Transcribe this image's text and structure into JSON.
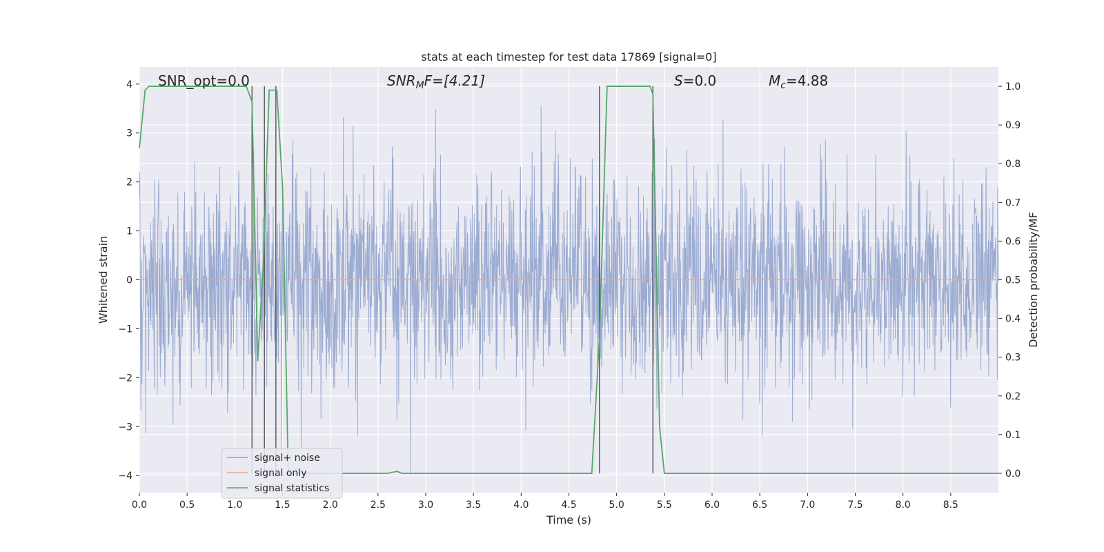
{
  "chart_data": {
    "type": "line",
    "title": "stats at each timestep for test data 17869 [signal=0]",
    "xlabel": "Time (s)",
    "ylabel": "Whitened strain",
    "ylabel_right": "Detection probability/MF",
    "xlim": [
      0.0,
      9.0
    ],
    "ylim": [
      -4.35,
      4.35
    ],
    "ylim_right": [
      -0.05,
      1.05
    ],
    "x_ticks": [
      "0.0",
      "0.5",
      "1.0",
      "1.5",
      "2.0",
      "2.5",
      "3.0",
      "3.5",
      "4.0",
      "4.5",
      "5.0",
      "5.5",
      "6.0",
      "6.5",
      "7.0",
      "7.5",
      "8.0",
      "8.5"
    ],
    "y_ticks": [
      "4",
      "3",
      "2",
      "1",
      "0",
      "−1",
      "−2",
      "−3",
      "−4"
    ],
    "y_ticks_right": [
      "1.0",
      "0.9",
      "0.8",
      "0.7",
      "0.6",
      "0.5",
      "0.4",
      "0.3",
      "0.2",
      "0.1",
      "0.0"
    ],
    "grid": true,
    "legend_position": "lower-left",
    "annotations": {
      "snr_opt": "SNR_opt=0.0",
      "snr_mf_main": "SNR",
      "snr_mf_sub": "M",
      "snr_mf_rest": "F=[4.21]",
      "s_main": "S",
      "s_rest": "=0.0",
      "mc_main": "M",
      "mc_sub": "c",
      "mc_rest": "=4.88"
    },
    "vertical_lines_x": [
      1.18,
      1.31,
      1.43,
      4.82,
      5.38
    ],
    "series": [
      {
        "name": "signal+ noise",
        "color": "#8da0cb",
        "description_values": "whitened noise strain, mostly within ±2.5, extremes near ±4",
        "sample_seed": 17869,
        "sample_count": 2300
      },
      {
        "name": "signal only",
        "color": "#e5a98f",
        "values_constant": 0.0
      },
      {
        "name": "signal statistics",
        "color": "#55a868",
        "axis": "right",
        "x": [
          0.0,
          0.06,
          0.1,
          0.2,
          0.5,
          1.0,
          1.12,
          1.18,
          1.24,
          1.3,
          1.36,
          1.38,
          1.44,
          1.5,
          1.56,
          1.6,
          2.6,
          2.7,
          2.75,
          4.74,
          4.82,
          4.9,
          5.35,
          5.38,
          5.45,
          5.5,
          9.0
        ],
        "y": [
          0.84,
          0.99,
          1.0,
          1.0,
          1.0,
          1.0,
          1.0,
          0.96,
          0.29,
          0.55,
          0.99,
          0.99,
          0.99,
          0.74,
          0.0,
          0.0,
          0.0,
          0.005,
          0.0,
          0.0,
          0.35,
          1.0,
          1.0,
          0.98,
          0.12,
          0.0,
          0.0
        ]
      }
    ]
  }
}
